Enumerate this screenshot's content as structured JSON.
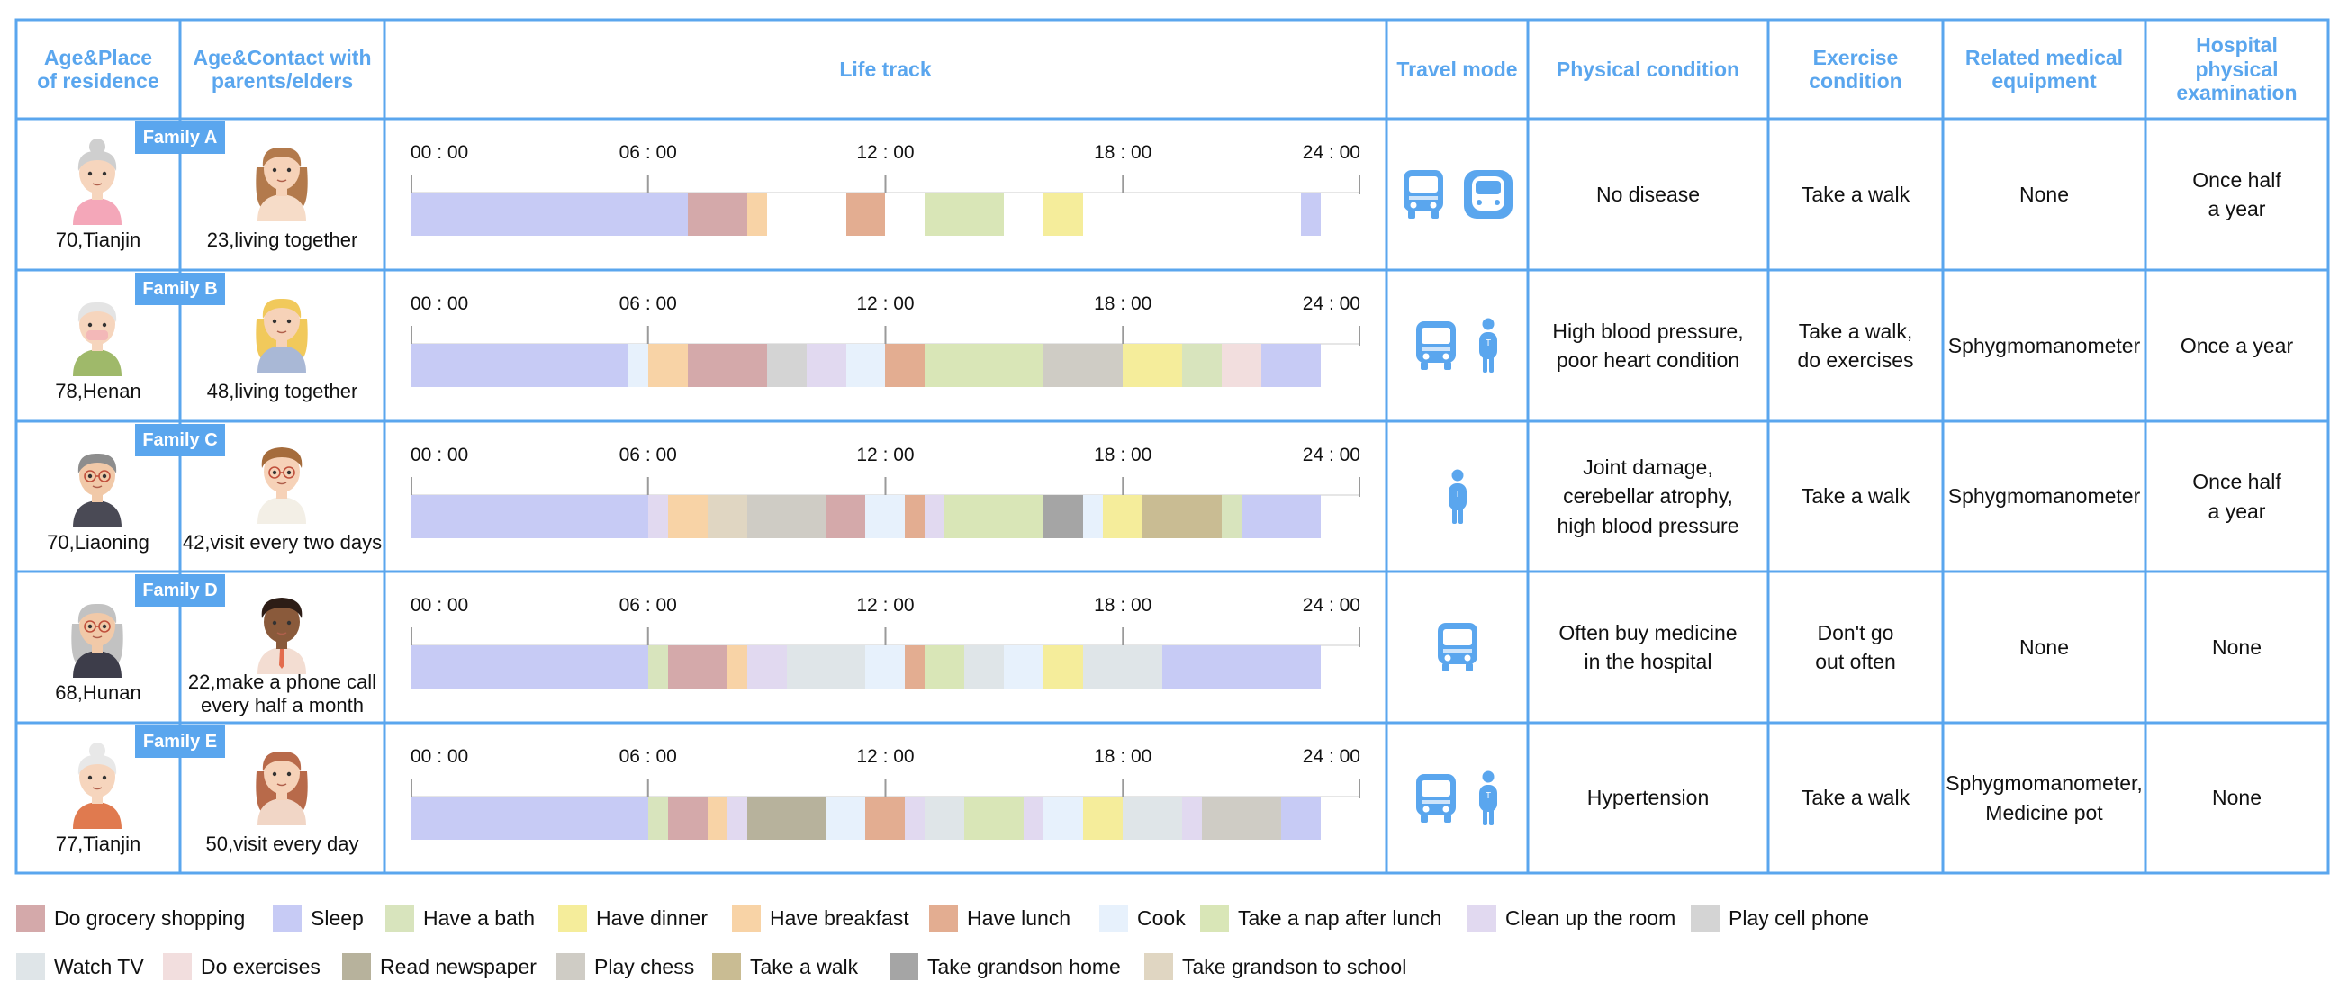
{
  "colors": {
    "accent": "#5aa6ee",
    "grocery": "#d4a9aa",
    "sleep": "#c7cbf5",
    "bath": "#d8e4bd",
    "dinner": "#f5ed9b",
    "breakfast": "#f8d3a6",
    "lunch": "#e3ad91",
    "cook": "#e7f1fc",
    "nap": "#d9e6b7",
    "clean": "#e1d9f0",
    "phone": "#d4d4d4",
    "tv": "#dfe5e8",
    "exercise": "#f2dede",
    "newspaper": "#b7b29c",
    "chess": "#cfccc5",
    "walk": "#c9bc93",
    "grandson_home": "#a5a5a5",
    "grandson_school": "#e0d6c2",
    "blank": "#ffffff"
  },
  "headers": {
    "age_place": "Age&Place\nof residence",
    "age_contact": "Age&Contact with\nparents/elders",
    "life_track": "Life track",
    "travel_mode": "Travel mode",
    "physical_condition": "Physical condition",
    "exercise_condition": "Exercise\ncondition",
    "medical_equipment": "Related medical\nequipment",
    "hospital_exam": "Hospital\nphysical\nexamination"
  },
  "time_ticks": [
    "00 : 00",
    "06 : 00",
    "12 : 00",
    "18 : 00",
    "24 : 00"
  ],
  "families": [
    {
      "badge": "Family A",
      "elder_caption": "70,Tianjin",
      "child_caption": "23,living together",
      "elder_avatar": "elderly-woman-pink-avatar",
      "child_avatar": "young-woman-avatar",
      "travel_icons": [
        "bus-icon",
        "subway-icon"
      ],
      "physical": "No disease",
      "exercise": "Take a walk",
      "equipment": "None",
      "exam": "Once half\na year",
      "track": [
        {
          "activity": "sleep",
          "hours": 7.0
        },
        {
          "activity": "grocery",
          "hours": 1.5
        },
        {
          "activity": "breakfast",
          "hours": 0.5
        },
        {
          "activity": "blank",
          "hours": 2.0
        },
        {
          "activity": "lunch",
          "hours": 1.0
        },
        {
          "activity": "blank",
          "hours": 1.0
        },
        {
          "activity": "nap",
          "hours": 2.0
        },
        {
          "activity": "blank",
          "hours": 1.0
        },
        {
          "activity": "dinner",
          "hours": 1.0
        },
        {
          "activity": "blank",
          "hours": 5.5
        },
        {
          "activity": "sleep",
          "hours": 0.5
        }
      ]
    },
    {
      "badge": "Family B",
      "elder_caption": "78,Henan",
      "child_caption": "48,living together",
      "elder_avatar": "elderly-man-mask-avatar",
      "child_avatar": "blonde-woman-avatar",
      "travel_icons": [
        "bus-icon",
        "walking-person-icon"
      ],
      "physical": "High blood pressure,\npoor heart condition",
      "exercise": "Take a walk,\ndo exercises",
      "equipment": "Sphygmomanometer",
      "exam": "Once a year",
      "track": [
        {
          "activity": "sleep",
          "hours": 5.5
        },
        {
          "activity": "cook",
          "hours": 0.5
        },
        {
          "activity": "breakfast",
          "hours": 1.0
        },
        {
          "activity": "grocery",
          "hours": 2.0
        },
        {
          "activity": "phone",
          "hours": 1.0
        },
        {
          "activity": "clean",
          "hours": 1.0
        },
        {
          "activity": "cook",
          "hours": 1.0
        },
        {
          "activity": "lunch",
          "hours": 1.0
        },
        {
          "activity": "nap",
          "hours": 3.0
        },
        {
          "activity": "chess",
          "hours": 2.0
        },
        {
          "activity": "dinner",
          "hours": 1.5
        },
        {
          "activity": "bath",
          "hours": 1.0
        },
        {
          "activity": "exercise",
          "hours": 1.0
        },
        {
          "activity": "sleep",
          "hours": 1.5
        }
      ]
    },
    {
      "badge": "Family C",
      "elder_caption": "70,Liaoning",
      "child_caption": "42,visit every two days",
      "elder_avatar": "elderly-man-glasses-avatar",
      "child_avatar": "young-man-glasses-avatar",
      "travel_icons": [
        "walking-person-icon"
      ],
      "physical": "Joint damage,\ncerebellar atrophy,\nhigh blood pressure",
      "exercise": "Take a walk",
      "equipment": "Sphygmomanometer",
      "exam": "Once half\na year",
      "track": [
        {
          "activity": "sleep",
          "hours": 6.0
        },
        {
          "activity": "clean",
          "hours": 0.5
        },
        {
          "activity": "breakfast",
          "hours": 1.0
        },
        {
          "activity": "grandson_school",
          "hours": 1.0
        },
        {
          "activity": "chess",
          "hours": 2.0
        },
        {
          "activity": "grocery",
          "hours": 1.0
        },
        {
          "activity": "cook",
          "hours": 1.0
        },
        {
          "activity": "lunch",
          "hours": 0.5
        },
        {
          "activity": "clean",
          "hours": 0.5
        },
        {
          "activity": "nap",
          "hours": 2.5
        },
        {
          "activity": "grandson_home",
          "hours": 1.0
        },
        {
          "activity": "cook",
          "hours": 0.5
        },
        {
          "activity": "dinner",
          "hours": 1.0
        },
        {
          "activity": "walk",
          "hours": 2.0
        },
        {
          "activity": "bath",
          "hours": 0.5
        },
        {
          "activity": "sleep",
          "hours": 2.0
        }
      ]
    },
    {
      "badge": "Family D",
      "elder_caption": "68,Hunan",
      "child_caption": "22,make a phone call\nevery half a month",
      "elder_avatar": "elderly-woman-gray-avatar",
      "child_avatar": "young-man-dark-avatar",
      "travel_icons": [
        "bus-icon"
      ],
      "physical": "Often buy medicine\nin the hospital",
      "exercise": "Don't go\nout often",
      "equipment": "None",
      "exam": "None",
      "track": [
        {
          "activity": "sleep",
          "hours": 6.0
        },
        {
          "activity": "bath",
          "hours": 0.5
        },
        {
          "activity": "grocery",
          "hours": 1.5
        },
        {
          "activity": "breakfast",
          "hours": 0.5
        },
        {
          "activity": "clean",
          "hours": 1.0
        },
        {
          "activity": "tv",
          "hours": 2.0
        },
        {
          "activity": "cook",
          "hours": 1.0
        },
        {
          "activity": "lunch",
          "hours": 0.5
        },
        {
          "activity": "nap",
          "hours": 1.0
        },
        {
          "activity": "tv",
          "hours": 1.0
        },
        {
          "activity": "cook",
          "hours": 1.0
        },
        {
          "activity": "dinner",
          "hours": 1.0
        },
        {
          "activity": "tv",
          "hours": 2.0
        },
        {
          "activity": "sleep",
          "hours": 4.0
        }
      ]
    },
    {
      "badge": "Family E",
      "elder_caption": "77,Tianjin",
      "child_caption": "50,visit every day",
      "elder_avatar": "elderly-woman-orange-avatar",
      "child_avatar": "middle-aged-woman-avatar",
      "travel_icons": [
        "bus-icon",
        "walking-person-icon"
      ],
      "physical": "Hypertension",
      "exercise": "Take a walk",
      "equipment": "Sphygmomanometer,\nMedicine pot",
      "exam": "None",
      "track": [
        {
          "activity": "sleep",
          "hours": 6.0
        },
        {
          "activity": "bath",
          "hours": 0.5
        },
        {
          "activity": "grocery",
          "hours": 1.0
        },
        {
          "activity": "breakfast",
          "hours": 0.5
        },
        {
          "activity": "clean",
          "hours": 0.5
        },
        {
          "activity": "newspaper",
          "hours": 2.0
        },
        {
          "activity": "cook",
          "hours": 1.0
        },
        {
          "activity": "lunch",
          "hours": 1.0
        },
        {
          "activity": "clean",
          "hours": 0.5
        },
        {
          "activity": "tv",
          "hours": 1.0
        },
        {
          "activity": "nap",
          "hours": 1.5
        },
        {
          "activity": "clean",
          "hours": 0.5
        },
        {
          "activity": "cook",
          "hours": 1.0
        },
        {
          "activity": "dinner",
          "hours": 1.0
        },
        {
          "activity": "tv",
          "hours": 1.5
        },
        {
          "activity": "clean",
          "hours": 0.5
        },
        {
          "activity": "chess",
          "hours": 2.0
        },
        {
          "activity": "sleep",
          "hours": 1.0
        }
      ]
    }
  ],
  "legend": [
    {
      "key": "grocery",
      "label": "Do grocery shopping"
    },
    {
      "key": "sleep",
      "label": "Sleep"
    },
    {
      "key": "bath",
      "label": "Have a bath"
    },
    {
      "key": "dinner",
      "label": "Have dinner"
    },
    {
      "key": "breakfast",
      "label": "Have breakfast"
    },
    {
      "key": "lunch",
      "label": "Have lunch"
    },
    {
      "key": "cook",
      "label": "Cook"
    },
    {
      "key": "nap",
      "label": "Take a nap after lunch"
    },
    {
      "key": "clean",
      "label": "Clean up the room"
    },
    {
      "key": "phone",
      "label": "Play cell phone"
    },
    {
      "key": "tv",
      "label": "Watch TV"
    },
    {
      "key": "exercise",
      "label": "Do exercises"
    },
    {
      "key": "newspaper",
      "label": "Read newspaper"
    },
    {
      "key": "chess",
      "label": "Play chess"
    },
    {
      "key": "walk",
      "label": "Take a walk"
    },
    {
      "key": "grandson_home",
      "label": "Take grandson home"
    },
    {
      "key": "grandson_school",
      "label": "Take grandson to school"
    }
  ]
}
